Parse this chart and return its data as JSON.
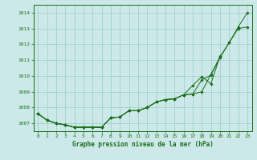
{
  "title": "Graphe pression niveau de la mer (hPa)",
  "xlabel_ticks": [
    0,
    1,
    2,
    3,
    4,
    5,
    6,
    7,
    8,
    9,
    10,
    11,
    12,
    13,
    14,
    15,
    16,
    17,
    18,
    19,
    20,
    21,
    22,
    23
  ],
  "ylim": [
    1006.5,
    1014.5
  ],
  "xlim": [
    -0.5,
    23.5
  ],
  "yticks": [
    1007,
    1008,
    1009,
    1010,
    1011,
    1012,
    1013,
    1014
  ],
  "bg_color": "#cce8e8",
  "grid_color": "#99cccc",
  "line_color": "#1a6e1a",
  "series": [
    [
      1007.6,
      1007.2,
      1007.0,
      1006.9,
      1006.75,
      1006.75,
      1006.75,
      1006.75,
      1007.35,
      1007.4,
      1007.8,
      1007.8,
      1008.0,
      1008.35,
      1008.5,
      1008.55,
      1008.8,
      1008.85,
      1009.0,
      1010.1,
      1011.2,
      1012.1,
      1013.1,
      1014.0
    ],
    [
      1007.6,
      1007.2,
      1007.0,
      1006.9,
      1006.75,
      1006.75,
      1006.75,
      1006.75,
      1007.35,
      1007.4,
      1007.8,
      1007.8,
      1008.0,
      1008.35,
      1008.5,
      1008.55,
      1008.8,
      1008.85,
      1009.75,
      1010.05,
      1011.15,
      1012.1,
      1013.0,
      1013.1
    ],
    [
      1007.6,
      1007.2,
      1007.0,
      1006.9,
      1006.75,
      1006.75,
      1006.75,
      1006.75,
      1007.35,
      1007.4,
      1007.8,
      1007.8,
      1008.0,
      1008.35,
      1008.5,
      1008.55,
      1008.8,
      1009.4,
      1009.95,
      1009.5,
      1011.25,
      null,
      null,
      null
    ],
    [
      1007.6,
      1007.2,
      1007.0,
      1006.9,
      1006.75,
      1006.75,
      1006.75,
      1006.75,
      null,
      null,
      null,
      null,
      null,
      null,
      null,
      null,
      null,
      null,
      null,
      null,
      null,
      null,
      null,
      null
    ]
  ]
}
